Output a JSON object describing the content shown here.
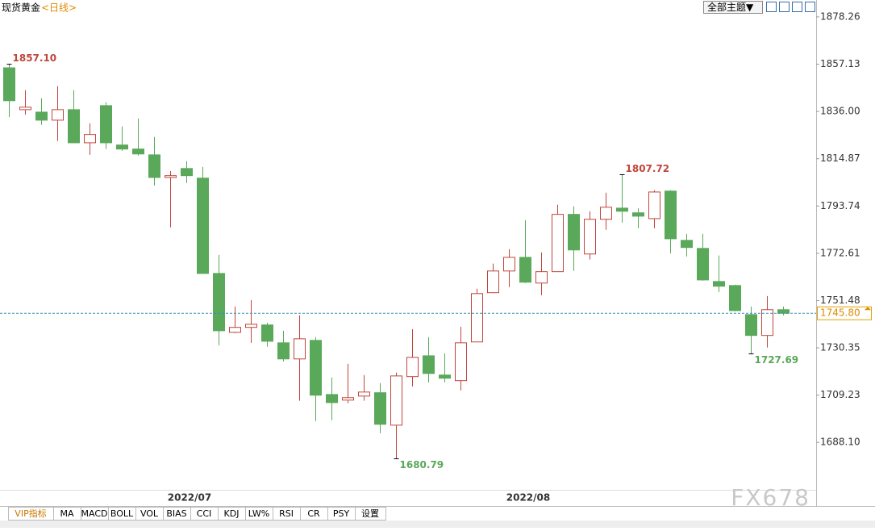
{
  "chart_data": {
    "type": "candlestick",
    "title": "现货黄金",
    "subtitle": "<日线>",
    "categories": [
      null,
      null,
      null,
      null,
      null,
      null,
      null,
      null,
      null,
      null,
      null,
      "2022/07",
      null,
      null,
      null,
      null,
      null,
      null,
      null,
      null,
      null,
      null,
      null,
      null,
      null,
      null,
      null,
      null,
      null,
      null,
      null,
      null,
      "2022/08",
      null,
      null,
      null,
      null,
      null,
      null,
      null,
      null,
      null,
      null,
      null,
      null,
      null,
      null,
      null,
      null
    ],
    "open": [
      1855.5,
      1836.8,
      1835.7,
      1832.1,
      1836.8,
      1822.0,
      1838.6,
      1821.0,
      1819.2,
      1816.6,
      1806.5,
      1810.5,
      1806.2,
      1763.6,
      1737.3,
      1739.5,
      1740.6,
      1732.6,
      1725.4,
      1733.7,
      1709.5,
      1707.0,
      1708.8,
      1710.3,
      1695.8,
      1717.5,
      1726.8,
      1718.2,
      1715.7,
      1733.0,
      1755.0,
      1764.7,
      1770.8,
      1759.3,
      1764.4,
      1790.0,
      1772.3,
      1787.8,
      1792.8,
      1790.7,
      1788.1,
      1800.4,
      1778.4,
      1774.8,
      1760.0,
      1758.2,
      1745.2,
      1735.9,
      1747.4
    ],
    "high": [
      1857.1,
      1845.5,
      1841.9,
      1847.3,
      1845.5,
      1830.7,
      1840.1,
      1829.3,
      1832.9,
      1824.6,
      1809.4,
      1813.8,
      1811.2,
      1771.9,
      1748.8,
      1751.7,
      1741.6,
      1738.0,
      1744.9,
      1735.1,
      1717.1,
      1723.2,
      1718.2,
      1714.6,
      1719.3,
      1738.7,
      1735.1,
      1727.9,
      1739.8,
      1756.8,
      1768.0,
      1774.4,
      1787.4,
      1773.0,
      1794.3,
      1793.6,
      1791.4,
      1799.7,
      1807.72,
      1792.8,
      1800.8,
      1800.8,
      1781.3,
      1781.3,
      1771.6,
      1758.6,
      1748.8,
      1753.5,
      1748.8
    ],
    "low": [
      1833.5,
      1834.6,
      1830.0,
      1822.8,
      1822.0,
      1816.6,
      1819.2,
      1818.4,
      1816.3,
      1802.9,
      1784.2,
      1804.0,
      1763.6,
      1731.5,
      1736.9,
      1732.6,
      1730.8,
      1724.3,
      1706.7,
      1697.6,
      1698.0,
      1705.6,
      1706.7,
      1692.2,
      1680.79,
      1713.1,
      1714.9,
      1714.9,
      1711.3,
      1733.0,
      1755.0,
      1757.5,
      1759.3,
      1753.9,
      1764.4,
      1764.7,
      1769.8,
      1783.1,
      1786.3,
      1783.8,
      1783.8,
      1772.6,
      1771.2,
      1760.4,
      1755.3,
      1746.7,
      1727.69,
      1730.5,
      1744.9
    ],
    "close": [
      1840.8,
      1837.9,
      1832.1,
      1836.8,
      1822.0,
      1825.7,
      1822.0,
      1819.2,
      1817.0,
      1806.5,
      1807.3,
      1807.3,
      1763.6,
      1738.0,
      1739.5,
      1740.9,
      1733.3,
      1725.4,
      1734.4,
      1709.2,
      1705.9,
      1708.1,
      1710.6,
      1696.2,
      1717.8,
      1726.1,
      1718.9,
      1716.8,
      1732.6,
      1754.6,
      1764.7,
      1770.8,
      1759.7,
      1764.4,
      1790.0,
      1774.1,
      1787.8,
      1793.2,
      1791.4,
      1789.2,
      1800.0,
      1779.1,
      1775.2,
      1760.7,
      1757.9,
      1747.0,
      1735.9,
      1747.4,
      1745.8
    ],
    "up_color": "#c0463c",
    "down_color": "#5aa85a",
    "ylim": [
      1666.9,
      1885.8
    ],
    "yticks": [
      {
        "value": 1688.1,
        "label": "1688.10"
      },
      1709.23,
      1730.35,
      1751.48,
      1772.61,
      1793.74,
      1814.87,
      {
        "value": 1836,
        "label": "1836.00"
      },
      1857.13,
      1878.26
    ],
    "annotations": [
      {
        "value": 1857.1,
        "label": "1857.10"
      },
      {
        "value": 1680.79,
        "label": "1680.79"
      },
      {
        "value": 1807.72,
        "label": "1807.72"
      },
      {
        "value": 1727.69,
        "label": "1727.69"
      }
    ],
    "current": {
      "value": 1745.8,
      "label": "1745.80"
    }
  },
  "toolbar": {
    "theme": "全部主题▼"
  },
  "tabs": [
    "VIP指标",
    "MA",
    "MACD",
    "BOLL",
    "VOL",
    "BIAS",
    "CCI",
    "KDJ",
    "LW%",
    "RSI",
    "CR",
    "PSY",
    "设置"
  ],
  "watermark": "FX678"
}
